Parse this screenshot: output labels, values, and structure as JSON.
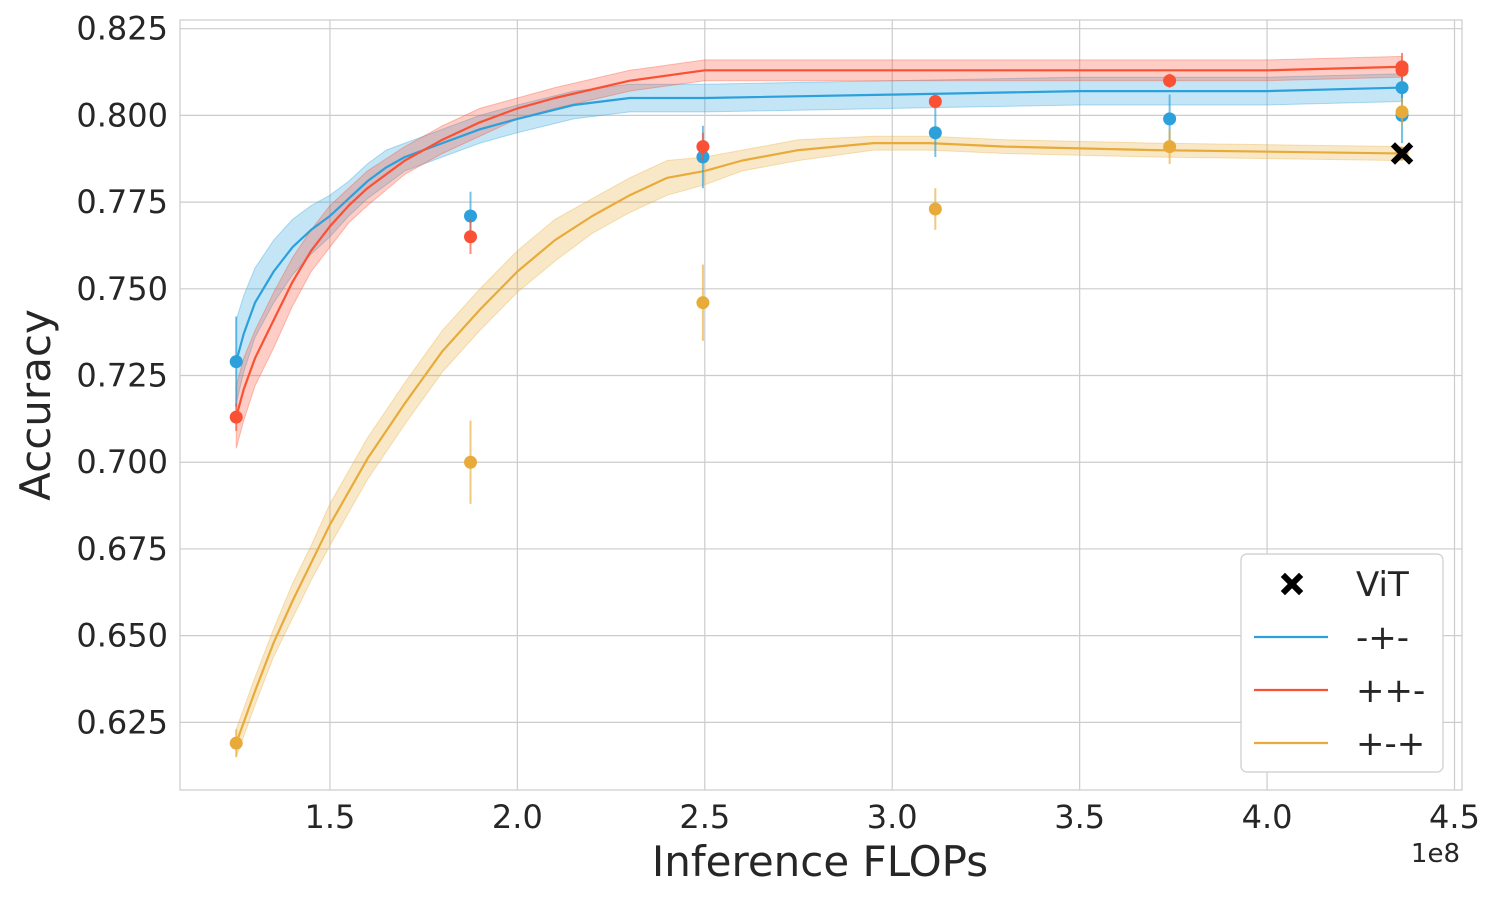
{
  "chart_data": {
    "type": "line",
    "title": "",
    "xlabel": "Inference FLOPs",
    "ylabel": "Accuracy",
    "x_offset_label": "1e8",
    "xlim": [
      1.1,
      4.52
    ],
    "ylim": [
      0.6055,
      0.8275
    ],
    "x_ticks": [
      1.5,
      2.0,
      2.5,
      3.0,
      3.5,
      4.0,
      4.5
    ],
    "x_tick_labels": [
      "1.5",
      "2.0",
      "2.5",
      "3.0",
      "3.5",
      "4.0",
      "4.5"
    ],
    "y_ticks": [
      0.625,
      0.65,
      0.675,
      0.7,
      0.725,
      0.75,
      0.775,
      0.8,
      0.825
    ],
    "y_tick_labels": [
      "0.625",
      "0.650",
      "0.675",
      "0.700",
      "0.725",
      "0.750",
      "0.775",
      "0.800",
      "0.825"
    ],
    "grid": true,
    "legend_position": "bottom-right",
    "legend": [
      {
        "label": "ViT",
        "kind": "marker-x",
        "color": "#000000"
      },
      {
        "label": "-+-",
        "kind": "line",
        "color": "#2ca0da"
      },
      {
        "label": "++-",
        "kind": "line",
        "color": "#fa5034"
      },
      {
        "label": "+-+",
        "kind": "line",
        "color": "#e8ab3a"
      }
    ],
    "series": [
      {
        "name": "-+-",
        "color": "#2ca0da",
        "x": [
          1.25,
          1.27,
          1.3,
          1.35,
          1.4,
          1.45,
          1.5,
          1.55,
          1.6,
          1.65,
          1.7,
          1.8,
          1.9,
          2.0,
          2.15,
          2.3,
          2.5,
          3.0,
          3.5,
          4.0,
          4.36
        ],
        "y": [
          0.729,
          0.737,
          0.746,
          0.755,
          0.762,
          0.767,
          0.771,
          0.776,
          0.781,
          0.785,
          0.788,
          0.792,
          0.796,
          0.799,
          0.803,
          0.805,
          0.805,
          0.806,
          0.807,
          0.807,
          0.808
        ],
        "band": [
          0.012,
          0.011,
          0.01,
          0.009,
          0.008,
          0.007,
          0.006,
          0.005,
          0.005,
          0.005,
          0.004,
          0.004,
          0.004,
          0.004,
          0.004,
          0.004,
          0.004,
          0.004,
          0.004,
          0.004,
          0.004
        ]
      },
      {
        "name": "++-",
        "color": "#fa5034",
        "x": [
          1.25,
          1.27,
          1.3,
          1.35,
          1.4,
          1.45,
          1.5,
          1.55,
          1.6,
          1.7,
          1.8,
          1.9,
          2.0,
          2.1,
          2.3,
          2.5,
          3.0,
          3.5,
          4.0,
          4.36
        ],
        "y": [
          0.713,
          0.721,
          0.73,
          0.741,
          0.752,
          0.761,
          0.768,
          0.774,
          0.779,
          0.787,
          0.793,
          0.798,
          0.802,
          0.805,
          0.81,
          0.813,
          0.813,
          0.813,
          0.813,
          0.814
        ],
        "band": [
          0.009,
          0.009,
          0.008,
          0.008,
          0.007,
          0.006,
          0.006,
          0.005,
          0.005,
          0.004,
          0.004,
          0.004,
          0.003,
          0.003,
          0.003,
          0.003,
          0.003,
          0.003,
          0.003,
          0.003
        ]
      },
      {
        "name": "+-+",
        "color": "#e8ab3a",
        "x": [
          1.25,
          1.3,
          1.35,
          1.4,
          1.45,
          1.5,
          1.6,
          1.7,
          1.8,
          1.9,
          2.0,
          2.1,
          2.2,
          2.3,
          2.4,
          2.5,
          2.6,
          2.75,
          2.95,
          3.1,
          3.3,
          3.7,
          4.36
        ],
        "y": [
          0.619,
          0.634,
          0.648,
          0.66,
          0.671,
          0.682,
          0.701,
          0.717,
          0.732,
          0.744,
          0.755,
          0.764,
          0.771,
          0.777,
          0.782,
          0.784,
          0.787,
          0.79,
          0.792,
          0.792,
          0.791,
          0.79,
          0.789
        ],
        "band": [
          0.004,
          0.004,
          0.004,
          0.005,
          0.005,
          0.006,
          0.006,
          0.006,
          0.006,
          0.006,
          0.006,
          0.006,
          0.005,
          0.005,
          0.005,
          0.004,
          0.003,
          0.003,
          0.002,
          0.002,
          0.002,
          0.002,
          0.002
        ]
      }
    ],
    "points": [
      {
        "series": "-+-",
        "color": "#2ca0da",
        "values": [
          [
            1.25,
            0.729,
            0.013
          ],
          [
            1.875,
            0.771,
            0.007
          ],
          [
            2.495,
            0.788,
            0.009
          ],
          [
            3.115,
            0.795,
            0.007
          ],
          [
            3.74,
            0.799,
            0.007
          ],
          [
            4.36,
            0.808,
            0.004
          ],
          [
            4.36,
            0.8,
            0.008
          ]
        ]
      },
      {
        "series": "++-",
        "color": "#fa5034",
        "values": [
          [
            1.25,
            0.713,
            0.004
          ],
          [
            1.875,
            0.765,
            0.005
          ],
          [
            2.495,
            0.791,
            0.004
          ],
          [
            3.115,
            0.804,
            0.002
          ],
          [
            3.74,
            0.81,
            0.002
          ],
          [
            4.36,
            0.814,
            0.004
          ],
          [
            4.36,
            0.813,
            0.002
          ]
        ]
      },
      {
        "series": "+-+",
        "color": "#e8ab3a",
        "values": [
          [
            1.25,
            0.619,
            0.004
          ],
          [
            1.875,
            0.7,
            0.012
          ],
          [
            2.495,
            0.746,
            0.011
          ],
          [
            3.115,
            0.773,
            0.006
          ],
          [
            3.74,
            0.791,
            0.005
          ],
          [
            4.36,
            0.801,
            0.004
          ],
          [
            4.36,
            0.789,
            0.002
          ]
        ]
      }
    ],
    "markers": [
      {
        "label": "ViT",
        "x": 4.36,
        "y": 0.789,
        "color": "#000000"
      }
    ]
  }
}
